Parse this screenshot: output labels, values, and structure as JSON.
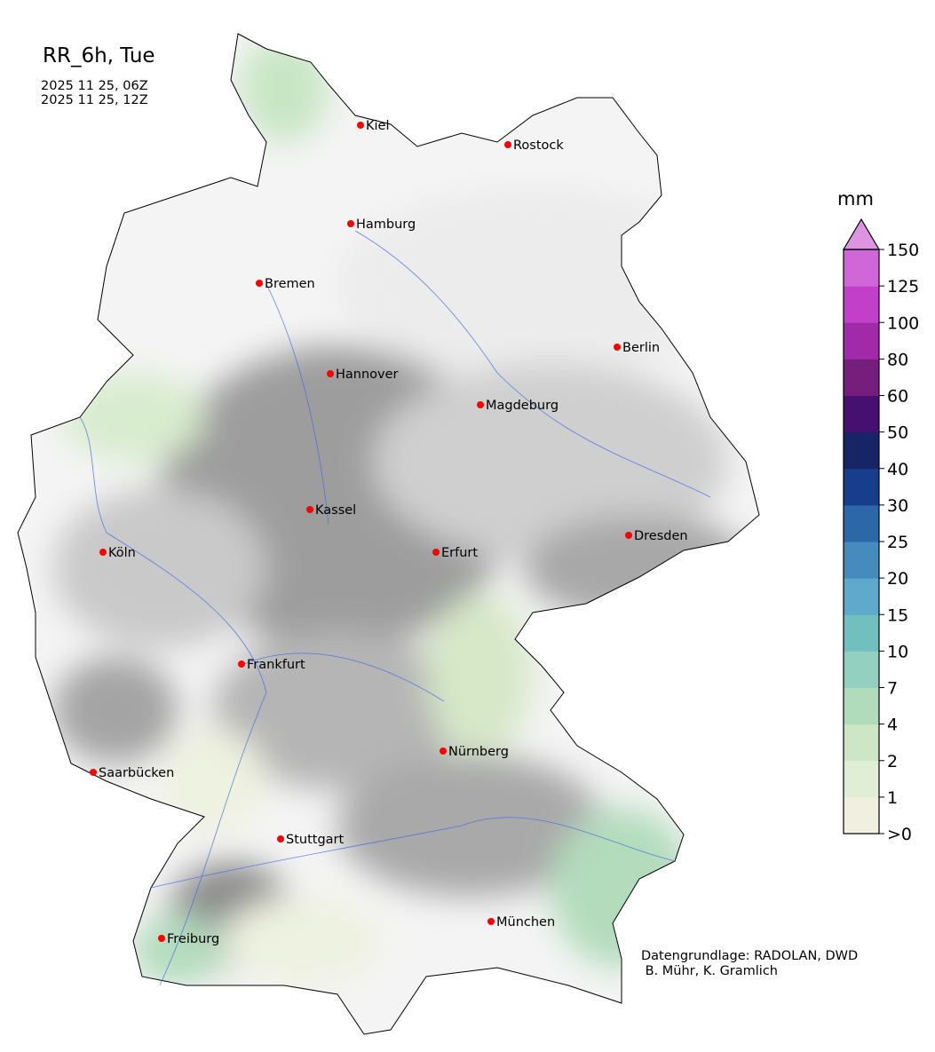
{
  "header": {
    "title": "RR_6h, Tue",
    "period_start": "2025 11 25, 06Z",
    "period_end": "2025 11 25, 12Z"
  },
  "credit": {
    "line1": "Datengrundlage: RADOLAN, DWD",
    "line2": " B. Mühr, K. Gramlich"
  },
  "map": {
    "region": "Germany",
    "city_marker_color": "#ff0000",
    "river_color": "#4169e1",
    "cities": [
      "Kiel",
      "Rostock",
      "Hamburg",
      "Bremen",
      "Berlin",
      "Hannover",
      "Magdeburg",
      "Kassel",
      "Köln",
      "Erfurt",
      "Dresden",
      "Frankfurt",
      "Nürnberg",
      "Saarbücken",
      "Stuttgart",
      "München",
      "Freiburg"
    ]
  },
  "colorbar": {
    "unit": "mm",
    "tick_labels": [
      ">0",
      "1",
      "2",
      "4",
      "7",
      "10",
      "15",
      "20",
      "25",
      "30",
      "40",
      "50",
      "60",
      "80",
      "100",
      "125",
      "150"
    ],
    "colors": [
      "#f0f0e0",
      "#e0eed6",
      "#cde6c6",
      "#b0dcbc",
      "#93d0c0",
      "#72bfc0",
      "#5faacc",
      "#468bbd",
      "#2c67a8",
      "#173e8b",
      "#172466",
      "#45106f",
      "#751e7e",
      "#a02aa8",
      "#c13fc9",
      "#d067d6"
    ],
    "extend_color": "#df94e1"
  }
}
